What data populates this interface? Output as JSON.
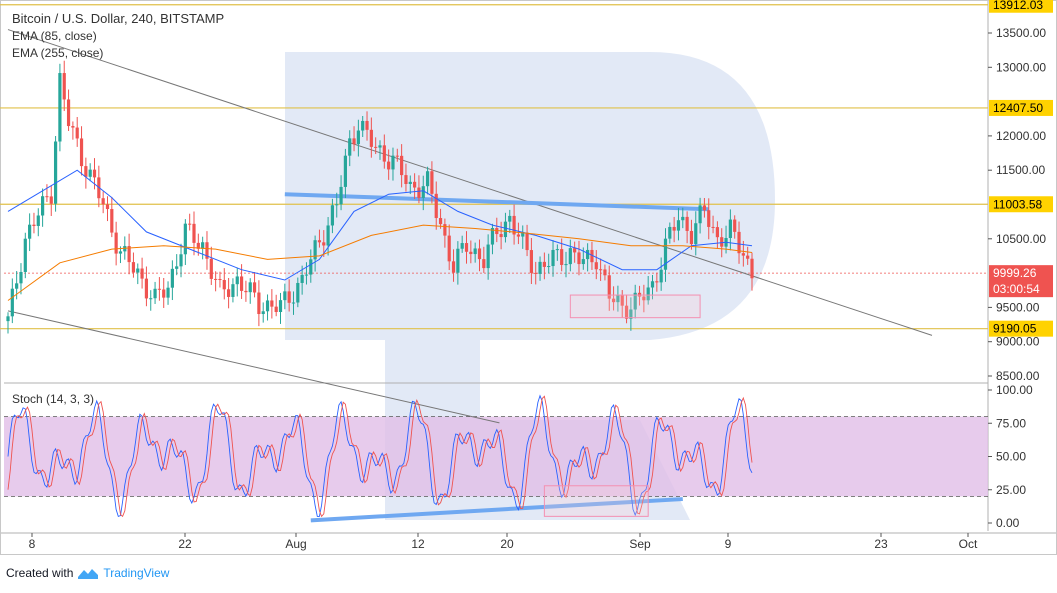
{
  "header": {
    "title": "Bitcoin / U.S. Dollar, 240, BITSTAMP",
    "ema_short": "EMA (85, close)",
    "ema_long": "EMA (255, close)",
    "stoch_title": "Stoch (14, 3, 3)"
  },
  "footer": {
    "prefix": "Created with",
    "brand": "TradingView"
  },
  "colors": {
    "up": "#26a69a",
    "down": "#ef5350",
    "ema_short": "#2962ff",
    "ema_long": "#f57c00",
    "level": "#e0c14a",
    "trend": "#6fa8f1",
    "stoch_band": "#e1bee7",
    "stoch_k": "#2962ff",
    "stoch_d": "#ef5350"
  },
  "price_axis": {
    "ticks": [
      13500,
      13000,
      12000,
      11500,
      10500,
      9500,
      9000,
      8500
    ],
    "tick_labels": [
      "13500.00",
      "13000.00",
      "12000.00",
      "11500.00",
      "10500.00",
      "9500.00",
      "9000.00",
      "8500.00"
    ],
    "levels": [
      {
        "value": 13912.03,
        "label": "13912.03"
      },
      {
        "value": 12407.5,
        "label": "12407.50"
      },
      {
        "value": 11003.58,
        "label": "11003.58"
      },
      {
        "value": 9190.05,
        "label": "9190.05"
      }
    ],
    "current_price": {
      "value": 9999.26,
      "label": "9999.26",
      "countdown": "03:00:54"
    }
  },
  "stoch_axis": {
    "ticks": [
      100,
      75,
      50,
      25,
      0
    ],
    "tick_labels": [
      "100.00",
      "75.00",
      "50.00",
      "25.00",
      "0.00"
    ],
    "overbought": 80,
    "oversold": 20
  },
  "time_axis": {
    "labels": [
      "8",
      "22",
      "Aug",
      "12",
      "20",
      "Sep",
      "9",
      "23",
      "Oct"
    ]
  },
  "chart_data": {
    "type": "candlestick",
    "title": "Bitcoin / U.S. Dollar, 240, BITSTAMP",
    "y_range": [
      8300,
      13950
    ],
    "stoch_range": [
      0,
      100
    ],
    "price_path_close": [
      {
        "t": 0,
        "v": 9300
      },
      {
        "t": 4,
        "v": 10500
      },
      {
        "t": 10,
        "v": 11200
      },
      {
        "t": 12,
        "v": 12800
      },
      {
        "t": 14,
        "v": 12200
      },
      {
        "t": 17,
        "v": 11700
      },
      {
        "t": 22,
        "v": 11000
      },
      {
        "t": 26,
        "v": 10300
      },
      {
        "t": 30,
        "v": 10000
      },
      {
        "t": 34,
        "v": 9600
      },
      {
        "t": 37,
        "v": 9800
      },
      {
        "t": 41,
        "v": 10600
      },
      {
        "t": 45,
        "v": 10400
      },
      {
        "t": 49,
        "v": 9700
      },
      {
        "t": 53,
        "v": 9900
      },
      {
        "t": 58,
        "v": 9550
      },
      {
        "t": 63,
        "v": 9500
      },
      {
        "t": 68,
        "v": 9900
      },
      {
        "t": 73,
        "v": 10600
      },
      {
        "t": 76,
        "v": 11000
      },
      {
        "t": 79,
        "v": 11900
      },
      {
        "t": 81,
        "v": 12200
      },
      {
        "t": 85,
        "v": 11800
      },
      {
        "t": 89,
        "v": 11650
      },
      {
        "t": 93,
        "v": 11250
      },
      {
        "t": 97,
        "v": 11300
      },
      {
        "t": 100,
        "v": 10700
      },
      {
        "t": 103,
        "v": 10100
      },
      {
        "t": 106,
        "v": 10400
      },
      {
        "t": 110,
        "v": 10200
      },
      {
        "t": 113,
        "v": 10600
      },
      {
        "t": 116,
        "v": 10800
      },
      {
        "t": 119,
        "v": 10400
      },
      {
        "t": 122,
        "v": 10050
      },
      {
        "t": 126,
        "v": 10200
      },
      {
        "t": 130,
        "v": 10300
      },
      {
        "t": 133,
        "v": 10150
      },
      {
        "t": 136,
        "v": 10250
      },
      {
        "t": 139,
        "v": 9650
      },
      {
        "t": 142,
        "v": 9500
      },
      {
        "t": 146,
        "v": 9600
      },
      {
        "t": 149,
        "v": 9800
      },
      {
        "t": 152,
        "v": 10400
      },
      {
        "t": 155,
        "v": 10800
      },
      {
        "t": 158,
        "v": 10600
      },
      {
        "t": 161,
        "v": 10900
      },
      {
        "t": 164,
        "v": 10500
      },
      {
        "t": 167,
        "v": 10600
      },
      {
        "t": 170,
        "v": 10300
      },
      {
        "t": 172,
        "v": 10000
      }
    ],
    "ema_short_path": [
      {
        "t": 0,
        "v": 10900
      },
      {
        "t": 8,
        "v": 11200
      },
      {
        "t": 16,
        "v": 11500
      },
      {
        "t": 24,
        "v": 11100
      },
      {
        "t": 32,
        "v": 10600
      },
      {
        "t": 44,
        "v": 10300
      },
      {
        "t": 54,
        "v": 10050
      },
      {
        "t": 64,
        "v": 9900
      },
      {
        "t": 72,
        "v": 10200
      },
      {
        "t": 80,
        "v": 10900
      },
      {
        "t": 88,
        "v": 11150
      },
      {
        "t": 96,
        "v": 11200
      },
      {
        "t": 104,
        "v": 10900
      },
      {
        "t": 112,
        "v": 10700
      },
      {
        "t": 122,
        "v": 10550
      },
      {
        "t": 132,
        "v": 10350
      },
      {
        "t": 142,
        "v": 10050
      },
      {
        "t": 150,
        "v": 10050
      },
      {
        "t": 158,
        "v": 10400
      },
      {
        "t": 166,
        "v": 10450
      },
      {
        "t": 172,
        "v": 10400
      }
    ],
    "ema_long_path": [
      {
        "t": 0,
        "v": 9600
      },
      {
        "t": 12,
        "v": 10150
      },
      {
        "t": 24,
        "v": 10350
      },
      {
        "t": 36,
        "v": 10400
      },
      {
        "t": 48,
        "v": 10350
      },
      {
        "t": 60,
        "v": 10200
      },
      {
        "t": 72,
        "v": 10250
      },
      {
        "t": 84,
        "v": 10550
      },
      {
        "t": 96,
        "v": 10700
      },
      {
        "t": 108,
        "v": 10650
      },
      {
        "t": 120,
        "v": 10580
      },
      {
        "t": 132,
        "v": 10500
      },
      {
        "t": 144,
        "v": 10400
      },
      {
        "t": 156,
        "v": 10400
      },
      {
        "t": 166,
        "v": 10350
      },
      {
        "t": 172,
        "v": 10300
      }
    ],
    "trend_lines": [
      {
        "name": "channel-upper",
        "from": {
          "t": 0,
          "v": 13550
        },
        "to": {
          "t": 172,
          "v": 10550
        }
      },
      {
        "name": "channel-lower",
        "from": {
          "t": 0,
          "v": 9450
        },
        "to": {
          "t": 72,
          "v": 8400
        }
      },
      {
        "name": "resistance",
        "from": {
          "t": 64,
          "v": 11150
        },
        "to": {
          "t": 162,
          "v": 10930
        }
      }
    ],
    "stoch_support": {
      "from": {
        "t": 70,
        "s": 2
      },
      "to": {
        "t": 156,
        "s": 18
      }
    },
    "target_box_price": {
      "from_t": 130,
      "to_t": 160,
      "top": 9680,
      "bottom": 9350
    },
    "target_box_stoch": {
      "from_t": 124,
      "to_t": 148,
      "top": 28,
      "bottom": 5
    }
  }
}
